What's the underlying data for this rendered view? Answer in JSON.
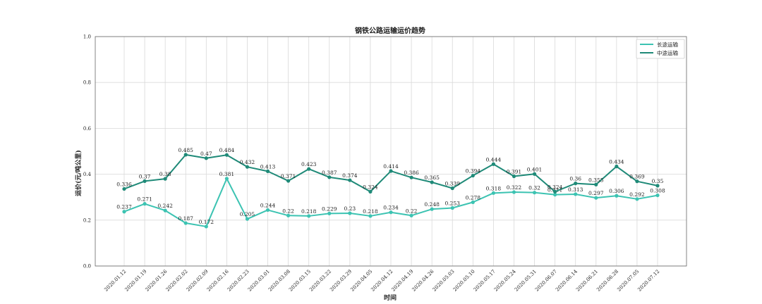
{
  "chart_data": {
    "type": "line",
    "title": "钢铁公路运输运价趋势",
    "xlabel": "时间",
    "ylabel": "运价(元/吨公里)",
    "ylim": [
      0.0,
      1.0
    ],
    "yticks": [
      "0.0",
      "0.2",
      "0.4",
      "0.6",
      "0.8",
      "1.0"
    ],
    "grid": true,
    "legend_position": "top-right",
    "categories": [
      "2020.01.12",
      "2020.01.19",
      "2020.01.26",
      "2020.02.02",
      "2020.02.09",
      "2020.02.16",
      "2020.02.23",
      "2020.03.01",
      "2020.03.08",
      "2020.03.15",
      "2020.03.22",
      "2020.03.29",
      "2020.04.05",
      "2020.04.12",
      "2020.04.19",
      "2020.04.26",
      "2020.05.03",
      "2020.05.10",
      "2020.05.17",
      "2020.05.24",
      "2020.05.31",
      "2020.06.07",
      "2020.06.14",
      "2020.06.21",
      "2020.06.28",
      "2020.07.05",
      "2020.07.12"
    ],
    "series": [
      {
        "name": "长途运输",
        "color": "#3cc3b2",
        "values": [
          0.237,
          0.271,
          0.242,
          0.187,
          0.172,
          0.381,
          0.205,
          0.244,
          0.22,
          0.218,
          0.229,
          0.23,
          0.218,
          0.234,
          0.22,
          0.248,
          0.253,
          0.278,
          0.318,
          0.322,
          0.32,
          0.311,
          0.313,
          0.297,
          0.306,
          0.292,
          0.308
        ],
        "labels": [
          "0.237",
          "0.271",
          "0.242",
          "0.187",
          "0.172",
          "0.381",
          "0.205",
          "0.244",
          "0.22",
          "0.218",
          "0.229",
          "0.23",
          "0.218",
          "0.234",
          "0.22",
          "0.248",
          "0.253",
          "0.278",
          "0.318",
          "0.322",
          "0.32",
          "0.311",
          "0.313",
          "0.297",
          "0.306",
          "0.292",
          "0.308"
        ]
      },
      {
        "name": "中途运输",
        "color": "#1f8a78",
        "values": [
          0.336,
          0.37,
          0.38,
          0.485,
          0.47,
          0.484,
          0.432,
          0.413,
          0.371,
          0.423,
          0.387,
          0.374,
          0.324,
          0.414,
          0.386,
          0.365,
          0.339,
          0.394,
          0.444,
          0.391,
          0.401,
          0.324,
          0.36,
          0.355,
          0.434,
          0.369,
          0.35
        ],
        "labels": [
          "0.336",
          "0.37",
          "0.38",
          "0.485",
          "0.47",
          "0.484",
          "0.432",
          "0.413",
          "0.371",
          "0.423",
          "0.387",
          "0.374",
          "0.324",
          "0.414",
          "0.386",
          "0.365",
          "0.339",
          "0.394",
          "0.444",
          "0.391",
          "0.401",
          "0.324",
          "0.36",
          "0.355",
          "0.434",
          "0.369",
          "0.35"
        ]
      }
    ]
  }
}
